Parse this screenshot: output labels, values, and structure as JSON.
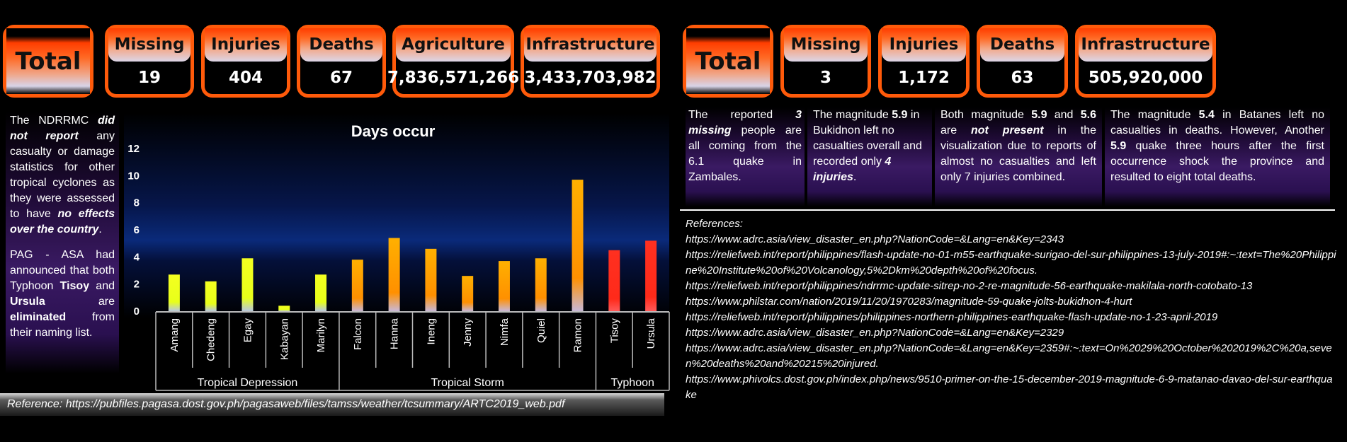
{
  "left_cards": {
    "total": "Total",
    "missing": {
      "label": "Missing",
      "value": "19"
    },
    "injuries": {
      "label": "Injuries",
      "value": "404"
    },
    "deaths": {
      "label": "Deaths",
      "value": "67"
    },
    "agriculture": {
      "label": "Agriculture",
      "value": "7,836,571,266"
    },
    "infrastructure": {
      "label": "Infrastructure",
      "value": "3,433,703,982"
    }
  },
  "right_cards": {
    "total": "Total",
    "missing": {
      "label": "Missing",
      "value": "3"
    },
    "injuries": {
      "label": "Injuries",
      "value": "1,172"
    },
    "deaths": {
      "label": "Deaths",
      "value": "63"
    },
    "infrastructure": {
      "label": "Infrastructure",
      "value": "505,920,000"
    }
  },
  "left_notes": {
    "p1": [
      "The NDRRMC ",
      "did not report",
      " any casualty or damage statistics for other tropical cyclones as they were assessed to have ",
      "no effects over the country",
      "."
    ],
    "p2": [
      "PAG - ASA had announced that both Typhoon ",
      "Tisoy",
      " and ",
      "Ursula",
      " are ",
      "eliminated",
      " from their naming list."
    ]
  },
  "right_notes": {
    "n1": [
      "The reported ",
      "3 missing",
      " people are all coming from the 6.1 quake in Zambales."
    ],
    "n2": [
      "The magnitude ",
      "5.9",
      " in Bukidnon left no casualties overall and recorded only ",
      "4 injuries",
      "."
    ],
    "n3": [
      "Both magnitude ",
      "5.9",
      " and ",
      "5.6",
      " are ",
      "not present",
      " in the visualization due to reports of almost no casualties and left only 7 injuries combined."
    ],
    "n4": [
      "The magnitude ",
      "5.4",
      " in Batanes left no casualties in deaths. However, Another ",
      "5.9",
      " quake three hours after the first occurrence shock the province and resulted to eight total deaths."
    ]
  },
  "references": {
    "heading": "References:",
    "links": [
      "https://www.adrc.asia/view_disaster_en.php?NationCode=&Lang=en&Key=2343",
      "https://reliefweb.int/report/philippines/flash-update-no-01-m55-earthquake-surigao-del-sur-philippines-13-july-2019#:~:text=The%20Philippine%20Institute%20of%20Volcanology,5%2Dkm%20depth%20of%20focus.",
      "https://reliefweb.int/report/philippines/ndrrmc-update-sitrep-no-2-re-magnitude-56-earthquake-makilala-north-cotobato-13",
      "https://www.philstar.com/nation/2019/11/20/1970283/magnitude-59-quake-jolts-bukidnon-4-hurt",
      "https://reliefweb.int/report/philippines/philippines-northern-philippines-earthquake-flash-update-no-1-23-april-2019",
      "https://www.adrc.asia/view_disaster_en.php?NationCode=&Lang=en&Key=2329",
      "https://www.adrc.asia/view_disaster_en.php?NationCode=&Lang=en&Key=2359#:~:text=On%2029%20October%202019%2C%20a,seven%20deaths%20and%20215%20injured.",
      "https://www.phivolcs.dost.gov.ph/index.php/news/9510-primer-on-the-15-december-2019-magnitude-6-9-matanao-davao-del-sur-earthquake"
    ]
  },
  "bottom_reference": "Reference: https://pubfiles.pagasa.dost.gov.ph/pagasaweb/files/tamss/weather/tcsummary/ARTC2019_web.pdf",
  "chart_data": {
    "type": "bar",
    "title": "Days occur",
    "xlabel": "",
    "ylabel": "",
    "ylim": [
      0,
      12
    ],
    "yticks": [
      0,
      2,
      4,
      6,
      8,
      10,
      12
    ],
    "categories": [
      "Amang",
      "Chedeng",
      "Egay",
      "Kabayan",
      "Marilyn",
      "Falcon",
      "Hanna",
      "Ineng",
      "Jenny",
      "Nimfa",
      "Quiel",
      "Ramon",
      "Tisoy",
      "Ursula"
    ],
    "values": [
      2.7,
      2.2,
      3.9,
      0.4,
      2.7,
      3.8,
      5.4,
      4.6,
      2.6,
      3.7,
      3.9,
      9.7,
      4.5,
      5.2
    ],
    "groups": [
      {
        "name": "Tropical Depression",
        "count": 5,
        "color": "#e8ff1a"
      },
      {
        "name": "Tropical Storm",
        "count": 7,
        "color": "#ff9a00"
      },
      {
        "name": "Typhoon",
        "count": 2,
        "color": "#ff2a1a"
      }
    ],
    "grid": false,
    "legend": "none"
  }
}
